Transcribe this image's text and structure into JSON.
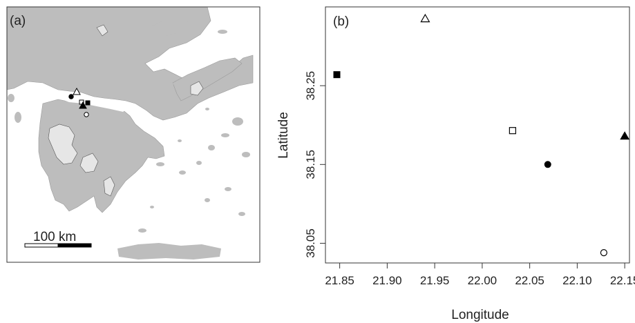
{
  "panels": {
    "a": {
      "label": "(a)"
    },
    "b": {
      "label": "(b)"
    }
  },
  "scale_bar": {
    "label": "100 km"
  },
  "chart_data": [
    {
      "type": "map",
      "panel": "(a)",
      "scale_bar_label": "100 km",
      "site_markers": [
        "open-triangle",
        "filled-circle",
        "open-square",
        "filled-square",
        "filled-triangle",
        "open-circle"
      ],
      "colors": {
        "land": "#bdbdbd",
        "mountain": "#e6e6e6",
        "sea": "#ffffff",
        "outline": "#555555"
      }
    },
    {
      "type": "scatter",
      "panel": "(b)",
      "xlabel": "Longitude",
      "ylabel": "Latitude",
      "xlim": [
        21.835,
        22.155
      ],
      "ylim": [
        38.025,
        38.35
      ],
      "xticks": [
        "21.85",
        "21.90",
        "21.95",
        "22.00",
        "22.05",
        "22.10",
        "22.15"
      ],
      "yticks": [
        "38.05",
        "38.15",
        "38.25"
      ],
      "grid": false,
      "points": [
        {
          "x": 21.847,
          "y": 38.264,
          "marker": "filled-square"
        },
        {
          "x": 21.94,
          "y": 38.335,
          "marker": "open-triangle"
        },
        {
          "x": 22.032,
          "y": 38.193,
          "marker": "open-square"
        },
        {
          "x": 22.069,
          "y": 38.15,
          "marker": "filled-circle"
        },
        {
          "x": 22.15,
          "y": 38.186,
          "marker": "filled-triangle"
        },
        {
          "x": 22.128,
          "y": 38.038,
          "marker": "open-circle"
        }
      ]
    }
  ]
}
